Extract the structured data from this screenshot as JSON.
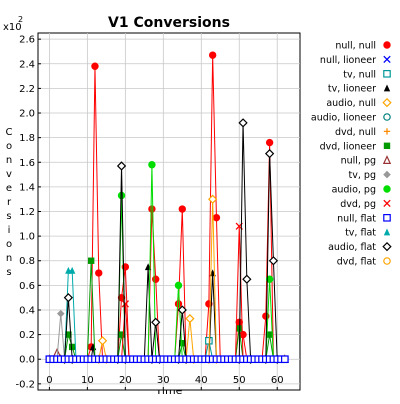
{
  "chart_data": {
    "type": "line",
    "title": "V1 Conversions",
    "xlabel": "Time",
    "ylabel": "Conversions",
    "y_scale_label": "x10",
    "y_scale_exp": "2",
    "xlim": [
      -3,
      66
    ],
    "ylim": [
      -0.25,
      2.65
    ],
    "x_ticks": [
      0,
      10,
      20,
      30,
      40,
      50,
      60
    ],
    "y_ticks": [
      -0.2,
      0.0,
      0.2,
      0.4,
      0.6,
      0.8,
      1.0,
      1.2,
      1.4,
      1.6,
      1.8,
      2.0,
      2.2,
      2.4,
      2.6
    ],
    "y_tick_labels": [
      "-0.2",
      "0.0",
      "0.2",
      "0.4",
      "0.6",
      "0.8",
      "1.0",
      "1.2",
      "1.4",
      "1.6",
      "1.8",
      "2.0",
      "2.2",
      "2.4",
      "2.6"
    ],
    "grid": true,
    "legend_position": "right",
    "series": [
      {
        "name": "null, null",
        "color": "#ff0000",
        "marker": "circle-filled",
        "points": [
          [
            10,
            0
          ],
          [
            11,
            0.1
          ],
          [
            12,
            2.38
          ],
          [
            13,
            0.7
          ],
          [
            14,
            0
          ],
          [
            18,
            0
          ],
          [
            19,
            0.5
          ],
          [
            20,
            0.75
          ],
          [
            21,
            0
          ],
          [
            26,
            0
          ],
          [
            27,
            1.22
          ],
          [
            28,
            0.65
          ],
          [
            29,
            0
          ],
          [
            33,
            0
          ],
          [
            34,
            0.45
          ],
          [
            35,
            1.22
          ],
          [
            36,
            0
          ],
          [
            41,
            0
          ],
          [
            42,
            0.45
          ],
          [
            43,
            2.47
          ],
          [
            44,
            1.15
          ],
          [
            45,
            0
          ],
          [
            49,
            0
          ],
          [
            50,
            0.3
          ],
          [
            51,
            0.2
          ],
          [
            52,
            0
          ],
          [
            56,
            0
          ],
          [
            57,
            0.35
          ],
          [
            58,
            1.76
          ],
          [
            59,
            0
          ]
        ]
      },
      {
        "name": "null, lioneer",
        "color": "#0000ff",
        "marker": "x",
        "points": [
          [
            0,
            0
          ],
          [
            62,
            0
          ]
        ]
      },
      {
        "name": "tv, null",
        "color": "#009999",
        "marker": "square-open",
        "points": [
          [
            41,
            0
          ],
          [
            42,
            0.15
          ],
          [
            43,
            0
          ]
        ]
      },
      {
        "name": "tv, lioneer",
        "color": "#000000",
        "marker": "triangle-filled",
        "points": [
          [
            11,
            0
          ],
          [
            11.5,
            0.1
          ],
          [
            12,
            0
          ],
          [
            25,
            0
          ],
          [
            26,
            0.75
          ],
          [
            27,
            0
          ],
          [
            42,
            0
          ],
          [
            43,
            0.7
          ],
          [
            44,
            0
          ]
        ]
      },
      {
        "name": "audio, null",
        "color": "#ffa500",
        "marker": "diamond-open",
        "points": [
          [
            13,
            0
          ],
          [
            14,
            0.15
          ],
          [
            15,
            0
          ],
          [
            36,
            0
          ],
          [
            37,
            0.33
          ],
          [
            38,
            0
          ],
          [
            42,
            0
          ],
          [
            43,
            1.3
          ],
          [
            44,
            0
          ]
        ]
      },
      {
        "name": "audio, lioneer",
        "color": "#008080",
        "marker": "circle-open",
        "points": [
          [
            0,
            0
          ],
          [
            62,
            0
          ]
        ]
      },
      {
        "name": "dvd, null",
        "color": "#ff8c00",
        "marker": "plus",
        "points": [
          [
            0,
            0
          ],
          [
            62,
            0
          ]
        ]
      },
      {
        "name": "dvd, lioneer",
        "color": "#009900",
        "marker": "square-filled",
        "points": [
          [
            4,
            0
          ],
          [
            5,
            0.2
          ],
          [
            6,
            0.1
          ],
          [
            7,
            0
          ],
          [
            10,
            0
          ],
          [
            11,
            0.8
          ],
          [
            12,
            0
          ],
          [
            18,
            0
          ],
          [
            19,
            0.2
          ],
          [
            20,
            0
          ],
          [
            34,
            0
          ],
          [
            35,
            0.13
          ],
          [
            36,
            0
          ],
          [
            49,
            0
          ],
          [
            50,
            0.25
          ],
          [
            51,
            0
          ],
          [
            57,
            0
          ],
          [
            58,
            0.2
          ],
          [
            59,
            0
          ]
        ]
      },
      {
        "name": "null, pg",
        "color": "#993333",
        "marker": "triangle-open",
        "points": [
          [
            0,
            0
          ],
          [
            2,
            0.05
          ],
          [
            3,
            0
          ],
          [
            62,
            0
          ]
        ]
      },
      {
        "name": "tv, pg",
        "color": "#999999",
        "marker": "diamond-filled",
        "points": [
          [
            2,
            0
          ],
          [
            3,
            0.37
          ],
          [
            4,
            0
          ]
        ]
      },
      {
        "name": "audio, pg",
        "color": "#00dd00",
        "marker": "circle-filled",
        "points": [
          [
            18,
            0
          ],
          [
            19,
            1.33
          ],
          [
            20,
            0
          ],
          [
            26,
            0
          ],
          [
            27,
            1.58
          ],
          [
            28,
            0
          ],
          [
            33,
            0
          ],
          [
            34,
            0.6
          ],
          [
            35,
            0
          ],
          [
            57,
            0
          ],
          [
            58,
            0.65
          ],
          [
            59,
            0
          ]
        ]
      },
      {
        "name": "dvd, pg",
        "color": "#ff0000",
        "marker": "x",
        "points": [
          [
            19,
            0
          ],
          [
            20,
            0.45
          ],
          [
            21,
            0
          ],
          [
            49,
            0
          ],
          [
            50,
            1.08
          ],
          [
            51,
            0
          ]
        ]
      },
      {
        "name": "null, flat",
        "color": "#0000ff",
        "marker": "square-open",
        "points": [
          [
            0,
            0
          ],
          [
            62,
            0
          ]
        ]
      },
      {
        "name": "tv, flat",
        "color": "#00aaaa",
        "marker": "triangle-filled",
        "points": [
          [
            4,
            0
          ],
          [
            5,
            0.72
          ],
          [
            6,
            0.72
          ],
          [
            7,
            0
          ]
        ]
      },
      {
        "name": "audio, flat",
        "color": "#000000",
        "marker": "diamond-open",
        "points": [
          [
            4,
            0
          ],
          [
            5,
            0.5
          ],
          [
            6,
            0
          ],
          [
            18,
            0
          ],
          [
            19,
            1.57
          ],
          [
            20,
            0
          ],
          [
            27,
            0
          ],
          [
            28,
            0.3
          ],
          [
            29,
            0
          ],
          [
            34,
            0
          ],
          [
            35,
            0.4
          ],
          [
            36,
            0
          ],
          [
            50,
            0
          ],
          [
            51,
            1.92
          ],
          [
            52,
            0.65
          ],
          [
            53,
            0
          ],
          [
            57,
            0
          ],
          [
            58,
            1.67
          ],
          [
            59,
            0.8
          ],
          [
            60,
            0
          ]
        ]
      },
      {
        "name": "dvd, flat",
        "color": "#ffa500",
        "marker": "circle-open",
        "points": [
          [
            0,
            0
          ],
          [
            62,
            0
          ]
        ]
      }
    ]
  }
}
